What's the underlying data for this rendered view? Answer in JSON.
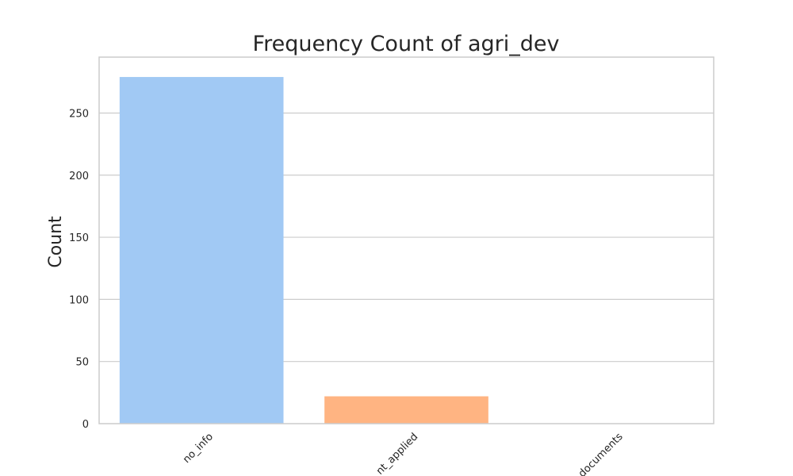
{
  "chart_data": {
    "type": "bar",
    "title": "Frequency Count of agri_dev",
    "xlabel": "",
    "ylabel": "Count",
    "categories": [
      "no_info",
      "not_applied",
      "documents"
    ],
    "visible_category_labels": [
      "no_info",
      "nt_applied",
      "documents"
    ],
    "values": [
      279,
      22,
      0
    ],
    "colors": [
      "#a1c9f4",
      "#ffb482",
      "#8de5a1"
    ],
    "ylim": [
      0,
      295
    ],
    "yticks": [
      0,
      50,
      100,
      150,
      200,
      250
    ],
    "grid": true,
    "legend": "none"
  }
}
